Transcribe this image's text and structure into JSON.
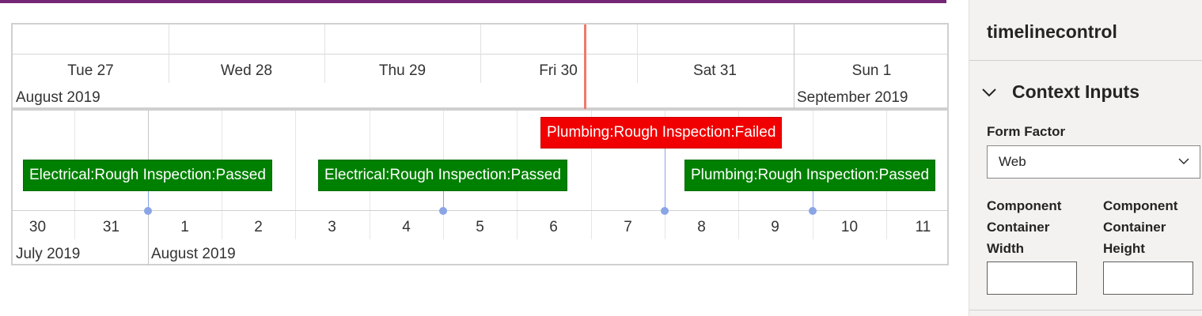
{
  "pane": {
    "title": "timelinecontrol",
    "section": {
      "title": "Context Inputs",
      "icon": "chevron-down-icon"
    },
    "form_factor": {
      "label": "Form Factor",
      "value": "Web"
    },
    "width": {
      "label_lines": [
        "Component",
        "Container",
        "Width"
      ],
      "value": ""
    },
    "height": {
      "label_lines": [
        "Component",
        "Container",
        "Height"
      ],
      "value": ""
    }
  },
  "top_timeline": {
    "days": [
      "Tue 27",
      "Wed 28",
      "Thu 29",
      "Fri 30",
      "Sat 31",
      "Sun 1"
    ],
    "months": [
      "August 2019",
      "September 2019"
    ]
  },
  "bottom_timeline": {
    "ticks": [
      "30",
      "31",
      "1",
      "2",
      "3",
      "4",
      "5",
      "6",
      "7",
      "8",
      "9",
      "10",
      "11"
    ],
    "months": [
      "July 2019",
      "August 2019"
    ],
    "events": [
      {
        "label": "Electrical:Rough Inspection:Passed",
        "status": "passed"
      },
      {
        "label": "Electrical:Rough Inspection:Passed",
        "status": "passed"
      },
      {
        "label": "Plumbing:Rough Inspection:Failed",
        "status": "failed"
      },
      {
        "label": "Plumbing:Rough Inspection:Passed",
        "status": "passed"
      }
    ]
  },
  "colors": {
    "passed": "#008000",
    "failed": "#f00000",
    "now_line": "#f0796b",
    "brand": "#742774",
    "marker": "#8aa5e6"
  }
}
